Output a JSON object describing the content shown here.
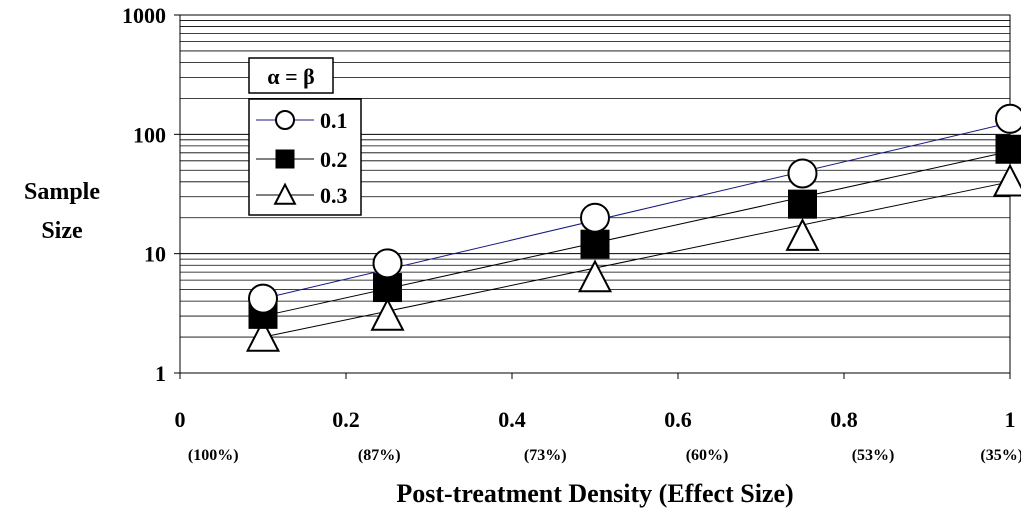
{
  "chart_data": {
    "type": "scatter",
    "title": "",
    "xlabel": "Post-treatment Density (Effect Size)",
    "ylabel": "Sample Size",
    "xlim": [
      0,
      1
    ],
    "ylim": [
      1,
      1000
    ],
    "y_scale": "log",
    "grid": "minor horizontal gridlines on log scale",
    "x_ticks": [
      "0",
      "0.2",
      "0.4",
      "0.6",
      "0.8",
      "1"
    ],
    "x_tick_values": [
      0,
      0.2,
      0.4,
      0.6,
      0.8,
      1
    ],
    "x_sublabels": [
      "(100%)",
      "(87%)",
      "(73%)",
      "(60%)",
      "(53%)",
      "(35%)"
    ],
    "x_sublabel_positions": [
      0.04,
      0.24,
      0.44,
      0.635,
      0.835,
      0.99
    ],
    "y_ticks": [
      "1",
      "10",
      "100",
      "1000"
    ],
    "y_tick_values": [
      1,
      10,
      100,
      1000
    ],
    "legend": {
      "title": "α = β",
      "placement": "top-left"
    },
    "x": [
      0.1,
      0.25,
      0.5,
      0.75,
      1
    ],
    "series": [
      {
        "name": "0.1",
        "marker": "circle-open",
        "line_color": "#1a1a80",
        "values": [
          4.2,
          8.3,
          20,
          47,
          135
        ],
        "fit": [
          4.2,
          125
        ]
      },
      {
        "name": "0.2",
        "marker": "square-filled",
        "line_color": "#000000",
        "values": [
          3.1,
          5.2,
          12,
          26,
          75
        ],
        "fit": [
          3.0,
          72
        ]
      },
      {
        "name": "0.3",
        "marker": "triangle-open",
        "line_color": "#000000",
        "values": [
          2.0,
          3.0,
          6.3,
          14,
          40
        ],
        "fit": [
          2.0,
          40
        ]
      }
    ]
  }
}
